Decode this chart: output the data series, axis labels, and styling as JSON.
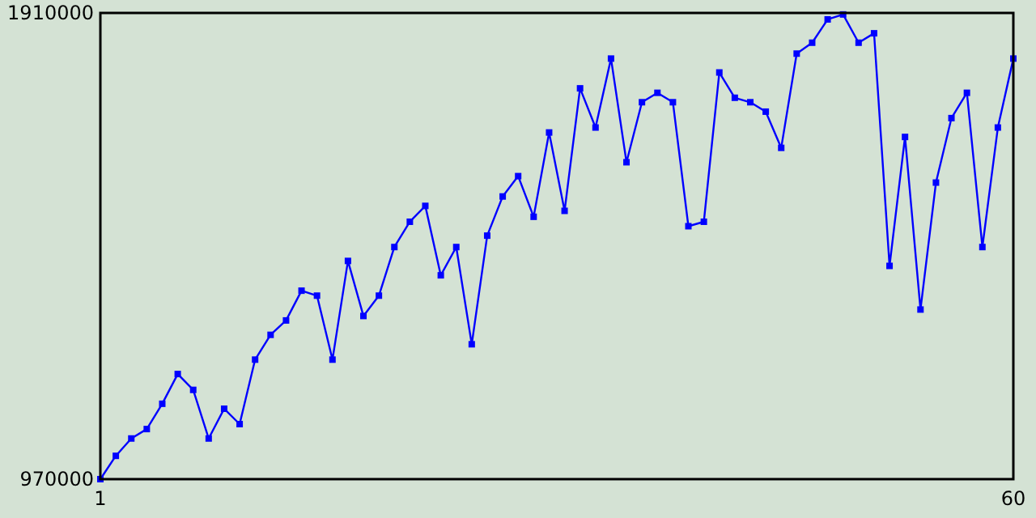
{
  "chart_data": {
    "type": "line",
    "x": [
      1,
      2,
      3,
      4,
      5,
      6,
      7,
      8,
      9,
      10,
      11,
      12,
      13,
      14,
      15,
      16,
      17,
      18,
      19,
      20,
      21,
      22,
      23,
      24,
      25,
      26,
      27,
      28,
      29,
      30,
      31,
      32,
      33,
      34,
      35,
      36,
      37,
      38,
      39,
      40,
      41,
      42,
      43,
      44,
      45,
      46,
      47,
      48,
      49,
      50,
      51,
      52,
      53,
      54,
      55,
      56,
      57,
      58,
      59,
      60
    ],
    "series": [
      {
        "color": "#0000ff",
        "values": [
          970000,
          1017000,
          1052000,
          1071000,
          1122000,
          1182000,
          1150000,
          1052000,
          1112000,
          1081000,
          1211000,
          1261000,
          1290000,
          1350000,
          1340000,
          1211000,
          1410000,
          1299000,
          1340000,
          1438000,
          1489000,
          1521000,
          1381000,
          1438000,
          1242000,
          1461000,
          1540000,
          1581000,
          1499000,
          1669000,
          1511000,
          1758000,
          1679000,
          1818000,
          1609000,
          1730000,
          1749000,
          1730000,
          1480000,
          1489000,
          1790000,
          1739000,
          1730000,
          1711000,
          1638000,
          1828000,
          1850000,
          1897000,
          1907000,
          1850000,
          1869000,
          1400000,
          1660000,
          1312000,
          1568000,
          1698000,
          1749000,
          1438000,
          1679000,
          1818000
        ]
      }
    ],
    "xlim": [
      1,
      60
    ],
    "xticks": [
      1,
      60
    ],
    "ylim": [
      970000,
      1910000
    ],
    "yticks": [
      970000,
      1910000
    ],
    "marker": "square",
    "line_style": "solid"
  }
}
